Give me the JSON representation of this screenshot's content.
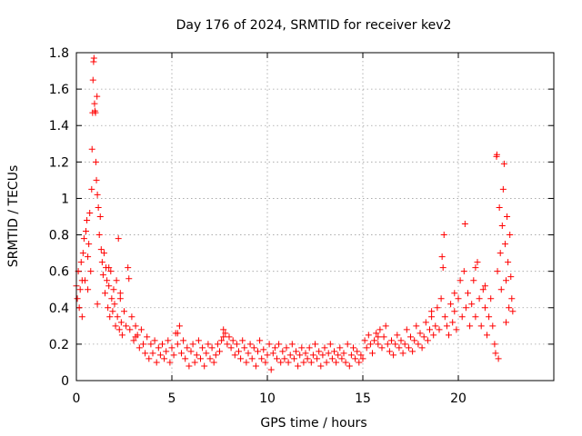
{
  "chart_data": {
    "type": "scatter",
    "title": "Day 176 of 2024, SRMTID for receiver kev2",
    "xlabel": "GPS time / hours",
    "ylabel": "SRMTID / TECUs",
    "xlim": [
      0,
      25
    ],
    "ylim": [
      0,
      1.8
    ],
    "xticks": [
      0,
      5,
      10,
      15,
      20
    ],
    "xtick_labels": [
      "0",
      "5",
      "10",
      "15",
      "20"
    ],
    "yticks": [
      0,
      0.2,
      0.4,
      0.6,
      0.8,
      1,
      1.2,
      1.4,
      1.6,
      1.8
    ],
    "ytick_labels": [
      "0",
      "0.2",
      "0.4",
      "0.6",
      "0.8",
      "1",
      "1.2",
      "1.4",
      "1.6",
      "1.8"
    ],
    "grid": true,
    "marker": "+",
    "color": "#ff0000",
    "series": [
      {
        "name": "SRMTID",
        "points": [
          [
            0.0,
            0.52
          ],
          [
            0.05,
            0.45
          ],
          [
            0.1,
            0.6
          ],
          [
            0.15,
            0.4
          ],
          [
            0.2,
            0.5
          ],
          [
            0.25,
            0.65
          ],
          [
            0.3,
            0.35
          ],
          [
            0.35,
            0.7
          ],
          [
            0.4,
            0.78
          ],
          [
            0.45,
            0.55
          ],
          [
            0.5,
            0.82
          ],
          [
            0.55,
            0.88
          ],
          [
            0.6,
            0.5
          ],
          [
            0.65,
            0.75
          ],
          [
            0.7,
            0.92
          ],
          [
            0.75,
            0.6
          ],
          [
            0.8,
            1.05
          ],
          [
            0.82,
            1.27
          ],
          [
            0.85,
            1.47
          ],
          [
            0.87,
            1.65
          ],
          [
            0.9,
            1.75
          ],
          [
            0.92,
            1.77
          ],
          [
            0.95,
            1.52
          ],
          [
            0.97,
            1.48
          ],
          [
            1.0,
            1.47
          ],
          [
            1.02,
            1.2
          ],
          [
            1.05,
            1.1
          ],
          [
            1.08,
            1.56
          ],
          [
            1.1,
            1.02
          ],
          [
            1.15,
            0.95
          ],
          [
            1.2,
            0.8
          ],
          [
            1.25,
            0.9
          ],
          [
            1.3,
            0.72
          ],
          [
            1.35,
            0.65
          ],
          [
            1.4,
            0.58
          ],
          [
            1.45,
            0.7
          ],
          [
            1.5,
            0.48
          ],
          [
            1.55,
            0.62
          ],
          [
            1.6,
            0.55
          ],
          [
            1.65,
            0.4
          ],
          [
            1.7,
            0.52
          ],
          [
            1.75,
            0.35
          ],
          [
            1.8,
            0.6
          ],
          [
            1.85,
            0.45
          ],
          [
            1.9,
            0.38
          ],
          [
            1.95,
            0.5
          ],
          [
            2.0,
            0.42
          ],
          [
            2.05,
            0.3
          ],
          [
            2.1,
            0.55
          ],
          [
            2.15,
            0.35
          ],
          [
            2.2,
            0.78
          ],
          [
            2.25,
            0.28
          ],
          [
            2.3,
            0.45
          ],
          [
            2.35,
            0.32
          ],
          [
            2.4,
            0.25
          ],
          [
            2.5,
            0.38
          ],
          [
            2.6,
            0.3
          ],
          [
            2.7,
            0.62
          ],
          [
            2.75,
            0.56
          ],
          [
            2.8,
            0.28
          ],
          [
            2.9,
            0.35
          ],
          [
            3.0,
            0.22
          ],
          [
            3.1,
            0.3
          ],
          [
            3.2,
            0.25
          ],
          [
            3.3,
            0.18
          ],
          [
            3.4,
            0.28
          ],
          [
            3.5,
            0.2
          ],
          [
            3.6,
            0.15
          ],
          [
            3.7,
            0.24
          ],
          [
            3.8,
            0.12
          ],
          [
            3.9,
            0.2
          ],
          [
            4.0,
            0.15
          ],
          [
            4.1,
            0.22
          ],
          [
            4.2,
            0.1
          ],
          [
            4.3,
            0.18
          ],
          [
            4.4,
            0.14
          ],
          [
            4.5,
            0.2
          ],
          [
            4.6,
            0.12
          ],
          [
            4.7,
            0.16
          ],
          [
            4.8,
            0.22
          ],
          [
            4.9,
            0.1
          ],
          [
            5.0,
            0.18
          ],
          [
            5.1,
            0.14
          ],
          [
            5.2,
            0.26
          ],
          [
            5.3,
            0.2
          ],
          [
            5.4,
            0.3
          ],
          [
            5.5,
            0.15
          ],
          [
            5.6,
            0.22
          ],
          [
            5.7,
            0.12
          ],
          [
            5.8,
            0.18
          ],
          [
            5.9,
            0.08
          ],
          [
            6.0,
            0.16
          ],
          [
            6.1,
            0.2
          ],
          [
            6.2,
            0.1
          ],
          [
            6.3,
            0.14
          ],
          [
            6.4,
            0.22
          ],
          [
            6.5,
            0.12
          ],
          [
            6.6,
            0.18
          ],
          [
            6.7,
            0.08
          ],
          [
            6.8,
            0.15
          ],
          [
            6.9,
            0.2
          ],
          [
            7.0,
            0.12
          ],
          [
            7.1,
            0.18
          ],
          [
            7.2,
            0.1
          ],
          [
            7.3,
            0.14
          ],
          [
            7.4,
            0.2
          ],
          [
            7.5,
            0.16
          ],
          [
            7.6,
            0.22
          ],
          [
            7.7,
            0.28
          ],
          [
            7.8,
            0.26
          ],
          [
            7.9,
            0.2
          ],
          [
            8.0,
            0.24
          ],
          [
            8.1,
            0.18
          ],
          [
            8.2,
            0.22
          ],
          [
            8.3,
            0.14
          ],
          [
            8.4,
            0.2
          ],
          [
            8.5,
            0.16
          ],
          [
            8.6,
            0.12
          ],
          [
            8.7,
            0.22
          ],
          [
            8.8,
            0.18
          ],
          [
            8.9,
            0.1
          ],
          [
            9.0,
            0.15
          ],
          [
            9.1,
            0.2
          ],
          [
            9.2,
            0.12
          ],
          [
            9.3,
            0.18
          ],
          [
            9.4,
            0.08
          ],
          [
            9.5,
            0.16
          ],
          [
            9.6,
            0.22
          ],
          [
            9.7,
            0.12
          ],
          [
            9.8,
            0.17
          ],
          [
            9.9,
            0.1
          ],
          [
            10.0,
            0.14
          ],
          [
            10.1,
            0.2
          ],
          [
            10.2,
            0.06
          ],
          [
            10.3,
            0.15
          ],
          [
            10.4,
            0.18
          ],
          [
            10.5,
            0.12
          ],
          [
            10.6,
            0.2
          ],
          [
            10.7,
            0.1
          ],
          [
            10.8,
            0.16
          ],
          [
            10.9,
            0.12
          ],
          [
            11.0,
            0.18
          ],
          [
            11.1,
            0.1
          ],
          [
            11.2,
            0.14
          ],
          [
            11.3,
            0.2
          ],
          [
            11.4,
            0.12
          ],
          [
            11.5,
            0.16
          ],
          [
            11.6,
            0.08
          ],
          [
            11.7,
            0.14
          ],
          [
            11.8,
            0.18
          ],
          [
            11.9,
            0.1
          ],
          [
            12.0,
            0.15
          ],
          [
            12.1,
            0.12
          ],
          [
            12.2,
            0.18
          ],
          [
            12.3,
            0.1
          ],
          [
            12.4,
            0.14
          ],
          [
            12.5,
            0.2
          ],
          [
            12.6,
            0.12
          ],
          [
            12.7,
            0.16
          ],
          [
            12.8,
            0.08
          ],
          [
            12.9,
            0.14
          ],
          [
            13.0,
            0.18
          ],
          [
            13.1,
            0.1
          ],
          [
            13.2,
            0.15
          ],
          [
            13.3,
            0.2
          ],
          [
            13.4,
            0.12
          ],
          [
            13.5,
            0.16
          ],
          [
            13.6,
            0.1
          ],
          [
            13.7,
            0.14
          ],
          [
            13.8,
            0.18
          ],
          [
            13.9,
            0.12
          ],
          [
            14.0,
            0.15
          ],
          [
            14.1,
            0.1
          ],
          [
            14.2,
            0.2
          ],
          [
            14.3,
            0.08
          ],
          [
            14.4,
            0.14
          ],
          [
            14.5,
            0.18
          ],
          [
            14.6,
            0.12
          ],
          [
            14.7,
            0.16
          ],
          [
            14.8,
            0.1
          ],
          [
            14.9,
            0.14
          ],
          [
            15.0,
            0.12
          ],
          [
            15.1,
            0.22
          ],
          [
            15.2,
            0.18
          ],
          [
            15.3,
            0.25
          ],
          [
            15.4,
            0.2
          ],
          [
            15.5,
            0.15
          ],
          [
            15.6,
            0.22
          ],
          [
            15.7,
            0.26
          ],
          [
            15.8,
            0.2
          ],
          [
            15.9,
            0.28
          ],
          [
            16.0,
            0.18
          ],
          [
            16.1,
            0.24
          ],
          [
            16.2,
            0.3
          ],
          [
            16.3,
            0.2
          ],
          [
            16.4,
            0.16
          ],
          [
            16.5,
            0.22
          ],
          [
            16.6,
            0.14
          ],
          [
            16.7,
            0.2
          ],
          [
            16.8,
            0.25
          ],
          [
            16.9,
            0.18
          ],
          [
            17.0,
            0.22
          ],
          [
            17.1,
            0.15
          ],
          [
            17.2,
            0.2
          ],
          [
            17.3,
            0.28
          ],
          [
            17.4,
            0.18
          ],
          [
            17.5,
            0.24
          ],
          [
            17.6,
            0.16
          ],
          [
            17.7,
            0.22
          ],
          [
            17.8,
            0.3
          ],
          [
            17.9,
            0.2
          ],
          [
            18.0,
            0.26
          ],
          [
            18.1,
            0.18
          ],
          [
            18.2,
            0.24
          ],
          [
            18.3,
            0.32
          ],
          [
            18.4,
            0.22
          ],
          [
            18.5,
            0.28
          ],
          [
            18.6,
            0.35
          ],
          [
            18.7,
            0.25
          ],
          [
            18.8,
            0.3
          ],
          [
            18.9,
            0.4
          ],
          [
            19.0,
            0.28
          ],
          [
            19.1,
            0.45
          ],
          [
            19.15,
            0.68
          ],
          [
            19.2,
            0.62
          ],
          [
            19.25,
            0.8
          ],
          [
            19.3,
            0.35
          ],
          [
            19.4,
            0.3
          ],
          [
            19.5,
            0.25
          ],
          [
            19.6,
            0.42
          ],
          [
            19.7,
            0.32
          ],
          [
            19.8,
            0.38
          ],
          [
            19.9,
            0.28
          ],
          [
            20.0,
            0.45
          ],
          [
            20.1,
            0.55
          ],
          [
            20.2,
            0.35
          ],
          [
            20.3,
            0.6
          ],
          [
            20.35,
            0.86
          ],
          [
            20.4,
            0.4
          ],
          [
            20.5,
            0.48
          ],
          [
            20.6,
            0.3
          ],
          [
            20.7,
            0.42
          ],
          [
            20.8,
            0.55
          ],
          [
            20.9,
            0.35
          ],
          [
            21.0,
            0.65
          ],
          [
            21.1,
            0.45
          ],
          [
            21.2,
            0.3
          ],
          [
            21.3,
            0.5
          ],
          [
            21.4,
            0.4
          ],
          [
            21.5,
            0.25
          ],
          [
            21.6,
            0.35
          ],
          [
            21.7,
            0.45
          ],
          [
            21.8,
            0.3
          ],
          [
            21.9,
            0.2
          ],
          [
            21.95,
            0.15
          ],
          [
            22.0,
            1.23
          ],
          [
            22.02,
            1.24
          ],
          [
            22.05,
            0.6
          ],
          [
            22.1,
            0.12
          ],
          [
            22.15,
            0.95
          ],
          [
            22.2,
            0.7
          ],
          [
            22.25,
            0.5
          ],
          [
            22.3,
            0.85
          ],
          [
            22.35,
            1.05
          ],
          [
            22.4,
            1.19
          ],
          [
            22.45,
            0.75
          ],
          [
            22.5,
            0.55
          ],
          [
            22.55,
            0.9
          ],
          [
            22.6,
            0.65
          ],
          [
            22.65,
            0.4
          ],
          [
            22.7,
            0.8
          ],
          [
            22.75,
            0.57
          ],
          [
            22.8,
            0.45
          ],
          [
            22.85,
            0.38
          ],
          [
            0.3,
            0.55
          ],
          [
            0.6,
            0.68
          ],
          [
            1.1,
            0.42
          ],
          [
            1.7,
            0.62
          ],
          [
            2.3,
            0.48
          ],
          [
            3.1,
            0.24
          ],
          [
            5.3,
            0.26
          ],
          [
            7.7,
            0.24
          ],
          [
            15.8,
            0.24
          ],
          [
            18.6,
            0.38
          ],
          [
            19.8,
            0.48
          ],
          [
            20.9,
            0.62
          ],
          [
            21.4,
            0.52
          ],
          [
            22.5,
            0.32
          ]
        ]
      }
    ]
  }
}
